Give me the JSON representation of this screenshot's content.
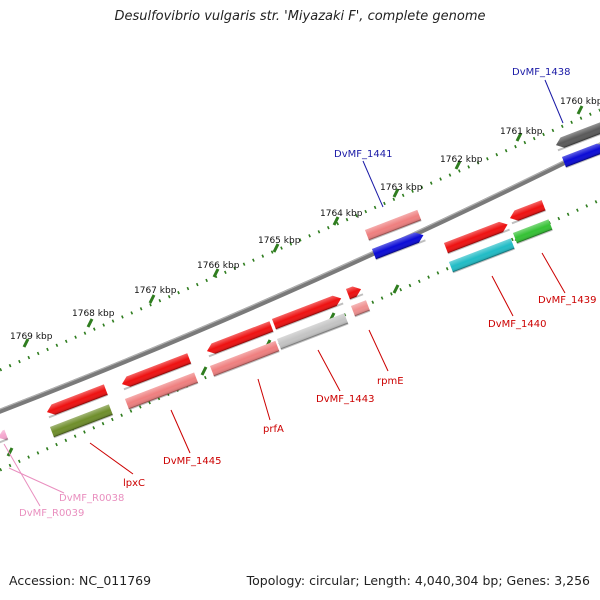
{
  "title": "Desulfovibrio vulgaris str. 'Miyazaki F', complete genome",
  "footer": {
    "accession": "Accession: NC_011769",
    "topology": "Topology: circular; Length: 4,040,304 bp; Genes: 3,256"
  },
  "colors": {
    "backbone": "#7a7a7a",
    "ticks": "#2f7d1f",
    "gene_label": "#cc0000",
    "blue_label": "#1a1aa6",
    "rna_label": "#e98fbf"
  },
  "ticks": [
    {
      "label": "1760 kbp"
    },
    {
      "label": "1761 kbp"
    },
    {
      "label": "1762 kbp"
    },
    {
      "label": "1763 kbp"
    },
    {
      "label": "1764 kbp"
    },
    {
      "label": "1765 kbp"
    },
    {
      "label": "1766 kbp"
    },
    {
      "label": "1767 kbp"
    },
    {
      "label": "1768 kbp"
    },
    {
      "label": "1769 kbp"
    }
  ],
  "features": [
    {
      "name": "gene-dvmf-1438-a",
      "color": "#5a5a5a"
    },
    {
      "name": "gene-dvmf-1438-b",
      "color": "#0b0bd6"
    },
    {
      "name": "gene-dvmf-1439-a",
      "color": "#ee1111"
    },
    {
      "name": "gene-dvmf-1439-b",
      "color": "#35c235"
    },
    {
      "name": "gene-dvmf-1440-a",
      "color": "#ee1111"
    },
    {
      "name": "gene-dvmf-1440-b",
      "color": "#21bcc6"
    },
    {
      "name": "gene-dvmf-1441-a",
      "color": "#ef7f7f"
    },
    {
      "name": "gene-dvmf-1441-b",
      "color": "#0b0bd6"
    },
    {
      "name": "gene-rpme-a",
      "color": "#ee1111"
    },
    {
      "name": "gene-rpme-b",
      "color": "#ef8f8f"
    },
    {
      "name": "gene-dvmf-1443-a",
      "color": "#ee1111"
    },
    {
      "name": "gene-dvmf-1443-b",
      "color": "#c4c4c4"
    },
    {
      "name": "gene-prfa-a",
      "color": "#ee1111"
    },
    {
      "name": "gene-prfa-b",
      "color": "#ef7f7f"
    },
    {
      "name": "gene-dvmf-1445-a",
      "color": "#ee1111"
    },
    {
      "name": "gene-dvmf-1445-b",
      "color": "#ef7f7f"
    },
    {
      "name": "gene-lpxc-a",
      "color": "#ee1111"
    },
    {
      "name": "gene-lpxc-b",
      "color": "#6f8e2b"
    },
    {
      "name": "gene-rna-r0038",
      "color": "#f5a6cf"
    }
  ],
  "labels": [
    {
      "text": "DvMF_1438",
      "type": "blue"
    },
    {
      "text": "DvMF_1441",
      "type": "blue"
    },
    {
      "text": "DvMF_1439",
      "type": "gene"
    },
    {
      "text": "DvMF_1440",
      "type": "gene"
    },
    {
      "text": "rpmE",
      "type": "gene"
    },
    {
      "text": "DvMF_1443",
      "type": "gene"
    },
    {
      "text": "prfA",
      "type": "gene"
    },
    {
      "text": "DvMF_1445",
      "type": "gene"
    },
    {
      "text": "lpxC",
      "type": "gene"
    },
    {
      "text": "DvMF_R0038",
      "type": "rna"
    },
    {
      "text": "DvMF_R0039",
      "type": "rna"
    }
  ]
}
